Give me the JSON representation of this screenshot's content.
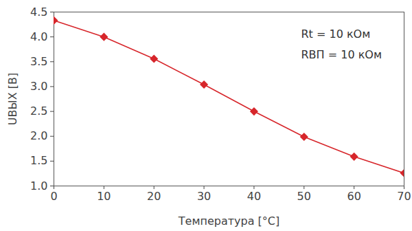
{
  "chart_data": {
    "type": "line",
    "x": [
      0,
      10,
      20,
      30,
      40,
      50,
      60,
      70
    ],
    "values": [
      4.33,
      4.0,
      3.56,
      3.04,
      2.5,
      1.99,
      1.59,
      1.26
    ],
    "color": "#d7262b",
    "marker": "diamond",
    "xlabel": "Температура [°C]",
    "ylabel": "UВЫХ [В]",
    "annotations": [
      "Rt = 10 кОм",
      "RВП = 10 кОм"
    ],
    "xlim": [
      0,
      70
    ],
    "xticks": [
      0,
      10,
      20,
      30,
      40,
      50,
      60,
      70
    ],
    "ylim": [
      1,
      4.5
    ],
    "yticks": [
      {
        "value": 1,
        "label": "1.0"
      },
      1.5,
      {
        "value": 2,
        "label": "2.0"
      },
      2.5,
      {
        "value": 3,
        "label": "3.0"
      },
      3.5,
      {
        "value": 4,
        "label": "4.0"
      },
      4.5
    ],
    "grid": false
  }
}
